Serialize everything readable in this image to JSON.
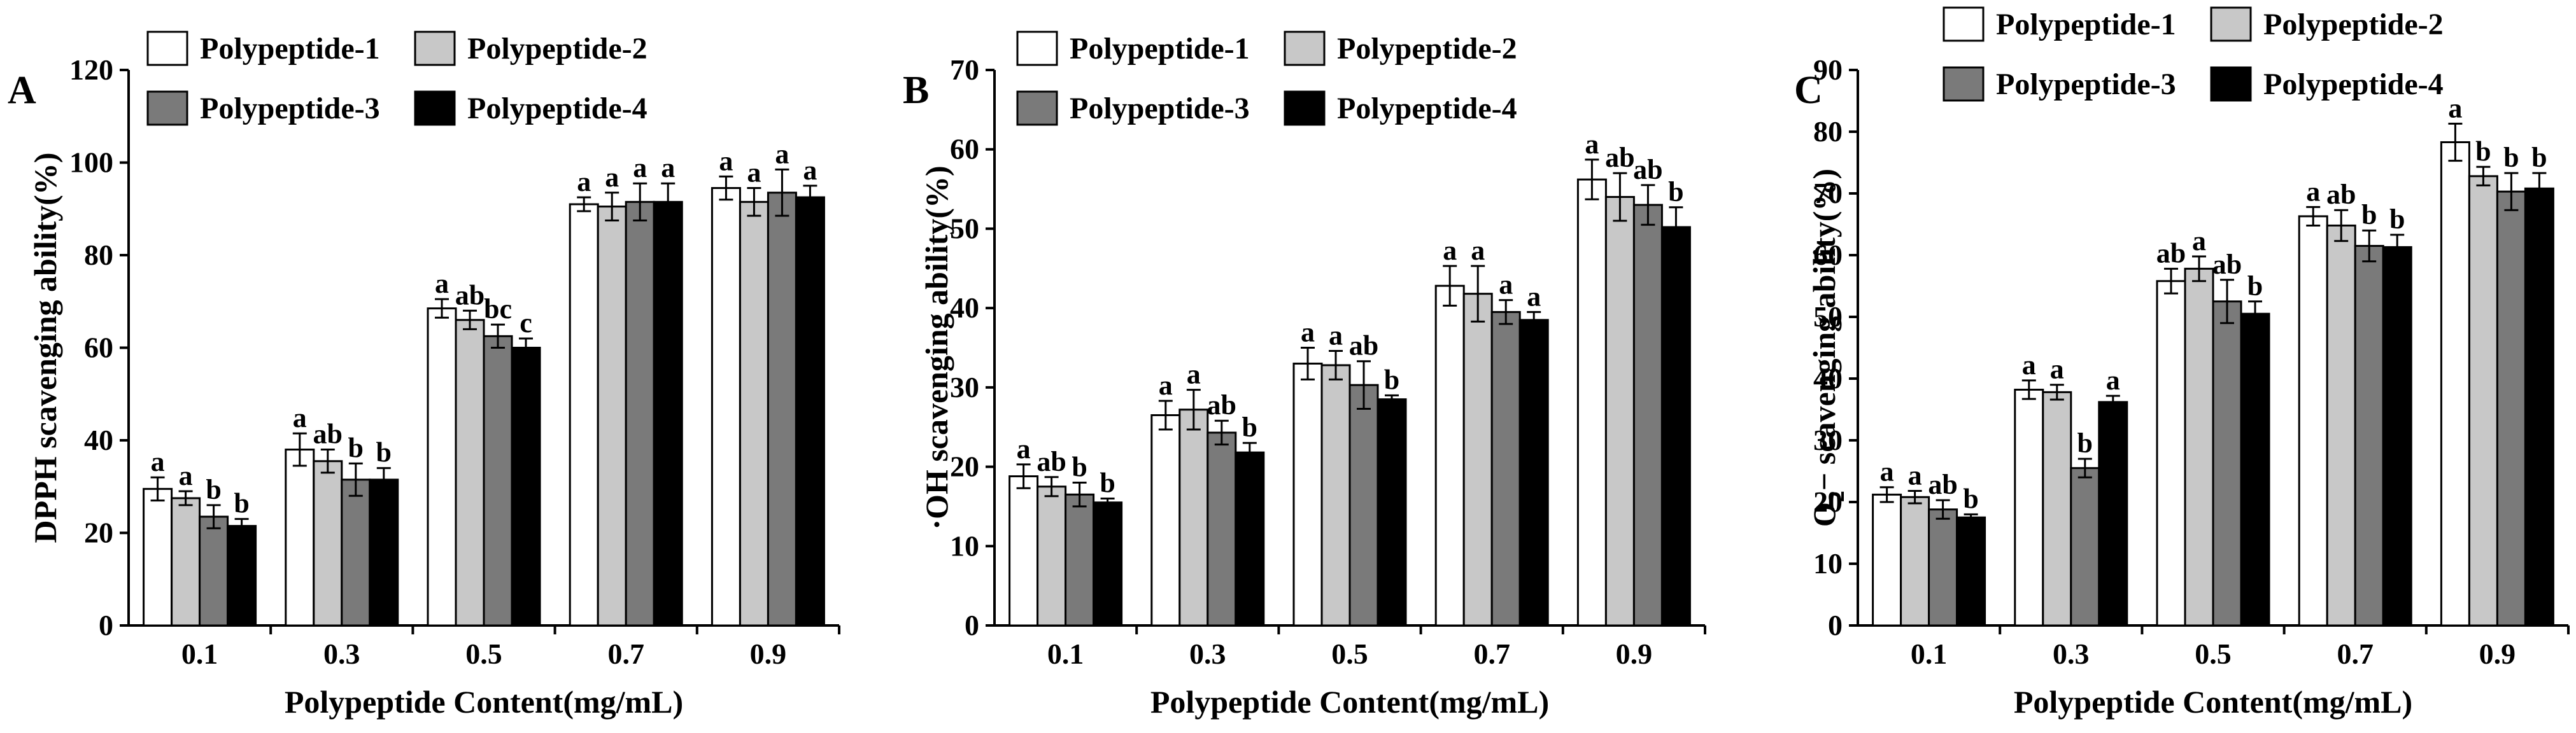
{
  "legend_labels": [
    "Polypeptide-1",
    "Polypeptide-2",
    "Polypeptide-3",
    "Polypeptide-4"
  ],
  "series_colors": [
    "#ffffff",
    "#c8c8c8",
    "#7a7a7a",
    "#000000"
  ],
  "chart_data": [
    {
      "type": "bar",
      "panel_letter": "A",
      "ylabel": "DPPH scavenging ability(%)",
      "xlabel": "Polypeptide Content(mg/mL)",
      "categories": [
        "0.1",
        "0.3",
        "0.5",
        "0.7",
        "0.9"
      ],
      "ylim": [
        0,
        120
      ],
      "yticks": [
        0,
        20,
        40,
        60,
        80,
        100,
        120
      ],
      "series": [
        {
          "name": "Polypeptide-1",
          "values": [
            29.5,
            38.0,
            68.5,
            91.0,
            94.5
          ],
          "errors": [
            2.5,
            3.5,
            2.0,
            1.5,
            2.5
          ],
          "letters": [
            "a",
            "a",
            "a",
            "a",
            "a"
          ]
        },
        {
          "name": "Polypeptide-2",
          "values": [
            27.5,
            35.5,
            66.0,
            90.5,
            91.5
          ],
          "errors": [
            1.5,
            2.5,
            2.0,
            3.0,
            3.0
          ],
          "letters": [
            "a",
            "ab",
            "ab",
            "a",
            "a"
          ]
        },
        {
          "name": "Polypeptide-3",
          "values": [
            23.5,
            31.5,
            62.5,
            91.5,
            93.5
          ],
          "errors": [
            2.5,
            3.5,
            2.5,
            4.0,
            5.0
          ],
          "letters": [
            "b",
            "b",
            "bc",
            "a",
            "a"
          ]
        },
        {
          "name": "Polypeptide-4",
          "values": [
            21.5,
            31.5,
            60.0,
            91.5,
            92.5
          ],
          "errors": [
            1.5,
            2.5,
            2.0,
            4.0,
            2.5
          ],
          "letters": [
            "b",
            "b",
            "c",
            "a",
            "a"
          ]
        }
      ]
    },
    {
      "type": "bar",
      "panel_letter": "B",
      "ylabel": "·OH scavenging ability(%)",
      "xlabel": "Polypeptide Content(mg/mL)",
      "categories": [
        "0.1",
        "0.3",
        "0.5",
        "0.7",
        "0.9"
      ],
      "ylim": [
        0,
        70
      ],
      "yticks": [
        0,
        10,
        20,
        30,
        40,
        50,
        60,
        70
      ],
      "series": [
        {
          "name": "Polypeptide-1",
          "values": [
            18.8,
            26.5,
            33.0,
            42.8,
            56.2
          ],
          "errors": [
            1.5,
            1.8,
            2.0,
            2.5,
            2.5
          ],
          "letters": [
            "a",
            "a",
            "a",
            "a",
            "a"
          ]
        },
        {
          "name": "Polypeptide-2",
          "values": [
            17.5,
            27.2,
            32.8,
            41.8,
            54.0
          ],
          "errors": [
            1.2,
            2.5,
            1.8,
            3.5,
            3.0
          ],
          "letters": [
            "ab",
            "a",
            "a",
            "a",
            "ab"
          ]
        },
        {
          "name": "Polypeptide-3",
          "values": [
            16.5,
            24.3,
            30.3,
            39.5,
            53.0
          ],
          "errors": [
            1.5,
            1.5,
            3.0,
            1.5,
            2.5
          ],
          "letters": [
            "b",
            "ab",
            "ab",
            "a",
            "ab"
          ]
        },
        {
          "name": "Polypeptide-4",
          "values": [
            15.5,
            21.8,
            28.5,
            38.5,
            50.2
          ],
          "errors": [
            0.5,
            1.2,
            0.5,
            1.0,
            2.5
          ],
          "letters": [
            "b",
            "b",
            "b",
            "a",
            "b"
          ]
        }
      ]
    },
    {
      "type": "bar",
      "panel_letter": "C",
      "ylabel_main": "O",
      "ylabel_sub": "2",
      "ylabel_rest": "− scavenging ability(%)",
      "xlabel": "Polypeptide Content(mg/mL)",
      "categories": [
        "0.1",
        "0.3",
        "0.5",
        "0.7",
        "0.9"
      ],
      "ylim": [
        0,
        90
      ],
      "yticks": [
        0,
        10,
        20,
        30,
        40,
        50,
        60,
        70,
        80,
        90
      ],
      "series": [
        {
          "name": "Polypeptide-1",
          "values": [
            21.2,
            38.2,
            55.8,
            66.3,
            78.3
          ],
          "errors": [
            1.2,
            1.5,
            2.0,
            1.5,
            3.0
          ],
          "letters": [
            "a",
            "a",
            "ab",
            "a",
            "a"
          ]
        },
        {
          "name": "Polypeptide-2",
          "values": [
            20.8,
            37.8,
            57.8,
            64.8,
            72.8
          ],
          "errors": [
            1.0,
            1.2,
            2.0,
            2.5,
            1.5
          ],
          "letters": [
            "a",
            "a",
            "a",
            "ab",
            "b"
          ]
        },
        {
          "name": "Polypeptide-3",
          "values": [
            18.8,
            25.5,
            52.5,
            61.5,
            70.3
          ],
          "errors": [
            1.5,
            1.5,
            3.5,
            2.5,
            3.0
          ],
          "letters": [
            "ab",
            "b",
            "ab",
            "b",
            "b"
          ]
        },
        {
          "name": "Polypeptide-4",
          "values": [
            17.5,
            36.2,
            50.5,
            61.3,
            70.8
          ],
          "errors": [
            0.5,
            1.0,
            2.0,
            2.0,
            2.5
          ],
          "letters": [
            "b",
            "a",
            "b",
            "b",
            "b"
          ]
        }
      ]
    }
  ]
}
